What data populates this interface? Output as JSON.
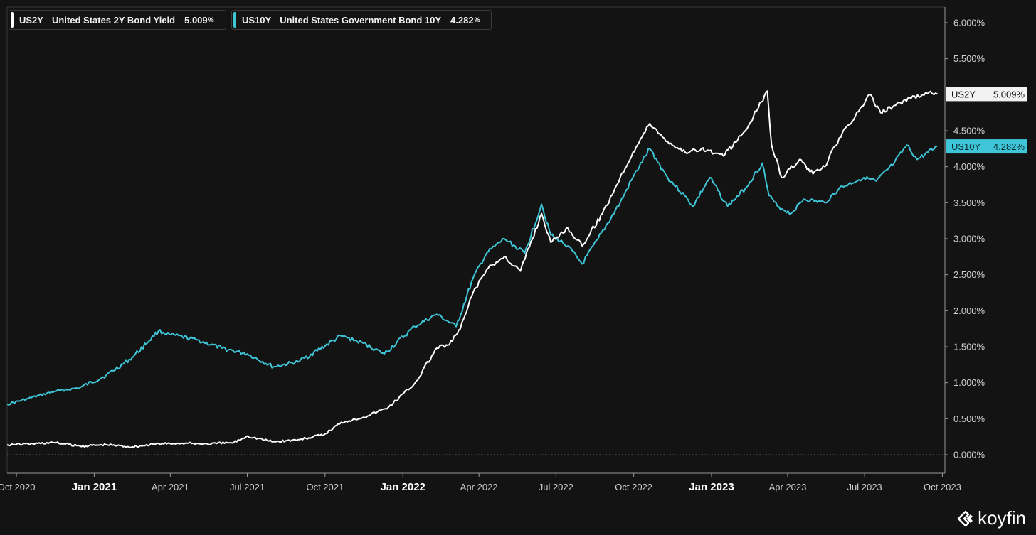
{
  "legend": {
    "us2y": {
      "symbol": "US2Y",
      "name": "United States 2Y Bond Yield",
      "value": "5.009",
      "unit": "%"
    },
    "us10y": {
      "symbol": "US10Y",
      "name": "United States Government Bond 10Y",
      "value": "4.282",
      "unit": "%"
    }
  },
  "brand": {
    "name": "koyfin",
    "icon": "koyfin-logo-icon"
  },
  "colors": {
    "background": "#131313",
    "us2y": "#ffffff",
    "us10y": "#3ec6d8",
    "axis": "#cfcfcf",
    "grid_zero": "#777777"
  },
  "chart_data": {
    "type": "line",
    "x_ticks": [
      "Oct 2020",
      "Jan 2021",
      "Apr 2021",
      "Jul 2021",
      "Oct 2021",
      "Jan 2022",
      "Apr 2022",
      "Jul 2022",
      "Oct 2022",
      "Jan 2023",
      "Apr 2023",
      "Jul 2023",
      "Oct 2023"
    ],
    "x_ticks_bold": [
      "Jan 2021",
      "Jan 2022",
      "Jan 2023"
    ],
    "y_ticks": [
      "0.000%",
      "0.500%",
      "1.000%",
      "1.500%",
      "2.000%",
      "2.500%",
      "3.000%",
      "3.500%",
      "4.000%",
      "4.500%",
      "5.500%",
      "6.000%"
    ],
    "ylim": [
      -0.25,
      6.2
    ],
    "grid": false,
    "zero_line": true,
    "last_value_labels": [
      {
        "series": "US2Y",
        "text": "5.009%"
      },
      {
        "series": "US10Y",
        "text": "4.282%"
      }
    ],
    "series": [
      {
        "name": "US2Y",
        "x": [
          "2020-09-20",
          "2020-10-15",
          "2020-11-15",
          "2020-12-15",
          "2021-01-15",
          "2021-02-15",
          "2021-03-15",
          "2021-04-15",
          "2021-05-15",
          "2021-06-15",
          "2021-07-01",
          "2021-08-01",
          "2021-09-01",
          "2021-09-30",
          "2021-10-20",
          "2021-11-15",
          "2021-12-15",
          "2022-01-15",
          "2022-02-10",
          "2022-02-25",
          "2022-03-10",
          "2022-03-25",
          "2022-04-10",
          "2022-05-01",
          "2022-05-20",
          "2022-06-14",
          "2022-06-25",
          "2022-07-15",
          "2022-08-01",
          "2022-08-25",
          "2022-09-15",
          "2022-09-30",
          "2022-10-20",
          "2022-11-10",
          "2022-12-01",
          "2022-12-20",
          "2023-01-15",
          "2023-02-10",
          "2023-03-01",
          "2023-03-08",
          "2023-03-13",
          "2023-03-25",
          "2023-04-15",
          "2023-05-01",
          "2023-05-15",
          "2023-06-01",
          "2023-06-20",
          "2023-07-07",
          "2023-07-20",
          "2023-08-05",
          "2023-08-25",
          "2023-09-15",
          "2023-09-25"
        ],
        "values": [
          0.14,
          0.15,
          0.17,
          0.12,
          0.14,
          0.11,
          0.15,
          0.16,
          0.15,
          0.17,
          0.26,
          0.18,
          0.21,
          0.28,
          0.45,
          0.52,
          0.66,
          0.99,
          1.48,
          1.53,
          1.75,
          2.25,
          2.57,
          2.75,
          2.55,
          3.35,
          2.95,
          3.15,
          2.9,
          3.35,
          3.85,
          4.2,
          4.6,
          4.35,
          4.2,
          4.25,
          4.15,
          4.5,
          4.9,
          5.05,
          4.3,
          3.85,
          4.1,
          3.9,
          4.0,
          4.4,
          4.7,
          5.0,
          4.75,
          4.85,
          4.95,
          5.03,
          5.01
        ]
      },
      {
        "name": "US10Y",
        "x": [
          "2020-09-20",
          "2020-10-15",
          "2020-11-15",
          "2020-12-15",
          "2021-01-15",
          "2021-02-15",
          "2021-03-18",
          "2021-03-31",
          "2021-05-01",
          "2021-06-01",
          "2021-07-01",
          "2021-08-01",
          "2021-09-01",
          "2021-10-20",
          "2021-11-15",
          "2021-12-10",
          "2022-01-15",
          "2022-02-10",
          "2022-03-05",
          "2022-03-25",
          "2022-04-10",
          "2022-05-01",
          "2022-05-25",
          "2022-06-14",
          "2022-06-25",
          "2022-07-15",
          "2022-08-01",
          "2022-08-20",
          "2022-09-15",
          "2022-09-30",
          "2022-10-20",
          "2022-11-10",
          "2022-11-30",
          "2022-12-10",
          "2022-12-30",
          "2023-01-20",
          "2023-02-10",
          "2023-03-02",
          "2023-03-10",
          "2023-03-20",
          "2023-04-05",
          "2023-04-20",
          "2023-05-15",
          "2023-06-01",
          "2023-06-30",
          "2023-07-15",
          "2023-08-05",
          "2023-08-20",
          "2023-09-01",
          "2023-09-25"
        ],
        "values": [
          0.7,
          0.78,
          0.88,
          0.93,
          1.1,
          1.35,
          1.72,
          1.67,
          1.6,
          1.48,
          1.4,
          1.22,
          1.3,
          1.65,
          1.55,
          1.4,
          1.78,
          1.95,
          1.78,
          2.45,
          2.8,
          3.0,
          2.8,
          3.48,
          3.05,
          2.9,
          2.65,
          3.0,
          3.5,
          3.85,
          4.25,
          3.85,
          3.6,
          3.45,
          3.85,
          3.45,
          3.7,
          4.05,
          3.6,
          3.45,
          3.35,
          3.55,
          3.5,
          3.7,
          3.85,
          3.8,
          4.05,
          4.3,
          4.1,
          4.28
        ]
      }
    ]
  }
}
